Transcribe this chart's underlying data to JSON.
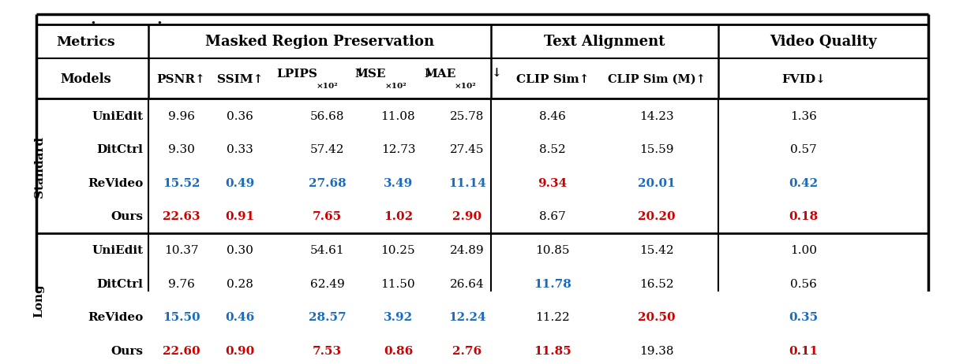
{
  "groups": [
    {
      "label": "Standard",
      "rows": [
        {
          "model": "UniEdit",
          "values": [
            "9.96",
            "0.36",
            "56.68",
            "11.08",
            "25.78",
            "8.46",
            "14.23",
            "1.36"
          ],
          "colors": [
            "k",
            "k",
            "k",
            "k",
            "k",
            "k",
            "k",
            "k"
          ]
        },
        {
          "model": "DitCtrl",
          "values": [
            "9.30",
            "0.33",
            "57.42",
            "12.73",
            "27.45",
            "8.52",
            "15.59",
            "0.57"
          ],
          "colors": [
            "k",
            "k",
            "k",
            "k",
            "k",
            "k",
            "k",
            "k"
          ]
        },
        {
          "model": "ReVideo",
          "values": [
            "15.52",
            "0.49",
            "27.68",
            "3.49",
            "11.14",
            "9.34",
            "20.01",
            "0.42"
          ],
          "colors": [
            "blue",
            "blue",
            "blue",
            "blue",
            "blue",
            "red",
            "blue",
            "blue"
          ]
        },
        {
          "model": "Ours",
          "values": [
            "22.63",
            "0.91",
            "7.65",
            "1.02",
            "2.90",
            "8.67",
            "20.20",
            "0.18"
          ],
          "colors": [
            "red",
            "red",
            "red",
            "red",
            "red",
            "k",
            "red",
            "red"
          ]
        }
      ]
    },
    {
      "label": "Long",
      "rows": [
        {
          "model": "UniEdit",
          "values": [
            "10.37",
            "0.30",
            "54.61",
            "10.25",
            "24.89",
            "10.85",
            "15.42",
            "1.00"
          ],
          "colors": [
            "k",
            "k",
            "k",
            "k",
            "k",
            "k",
            "k",
            "k"
          ]
        },
        {
          "model": "DitCtrl",
          "values": [
            "9.76",
            "0.28",
            "62.49",
            "11.50",
            "26.64",
            "11.78",
            "16.52",
            "0.56"
          ],
          "colors": [
            "k",
            "k",
            "k",
            "k",
            "k",
            "blue",
            "k",
            "k"
          ]
        },
        {
          "model": "ReVideo",
          "values": [
            "15.50",
            "0.46",
            "28.57",
            "3.92",
            "12.24",
            "11.22",
            "20.50",
            "0.35"
          ],
          "colors": [
            "blue",
            "blue",
            "blue",
            "blue",
            "blue",
            "k",
            "red",
            "blue"
          ]
        },
        {
          "model": "Ours",
          "values": [
            "22.60",
            "0.90",
            "7.53",
            "0.86",
            "2.76",
            "11.85",
            "19.38",
            "0.11"
          ],
          "colors": [
            "red",
            "red",
            "red",
            "red",
            "red",
            "red",
            "k",
            "red"
          ]
        }
      ]
    }
  ],
  "blue_color": "#1a6bbf",
  "red_color": "#cc0000",
  "black_color": "#000000"
}
